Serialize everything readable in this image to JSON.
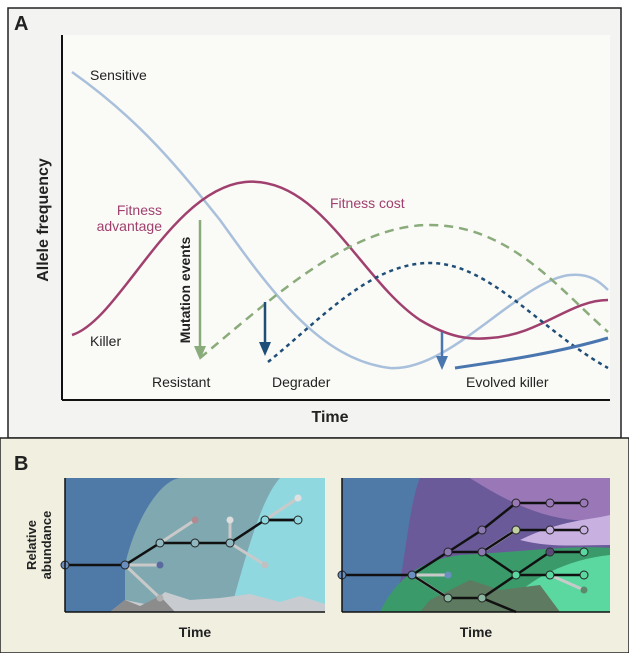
{
  "panel_a": {
    "label": "A",
    "y_axis_label": "Allele frequency",
    "x_axis_label": "Time",
    "curve_labels": {
      "sensitive": "Sensitive",
      "killer": "Killer",
      "fitness_advantage": [
        "Fitness",
        "advantage"
      ],
      "fitness_cost": "Fitness cost",
      "mutation_events": "Mutation events",
      "resistant": "Resistant",
      "degrader": "Degrader",
      "evolved_killer": "Evolved killer"
    }
  },
  "panel_b": {
    "label": "B",
    "y_axis_label": [
      "Relative",
      "abundance"
    ],
    "left_x_axis_label": "Time",
    "right_x_axis_label": "Time"
  }
}
